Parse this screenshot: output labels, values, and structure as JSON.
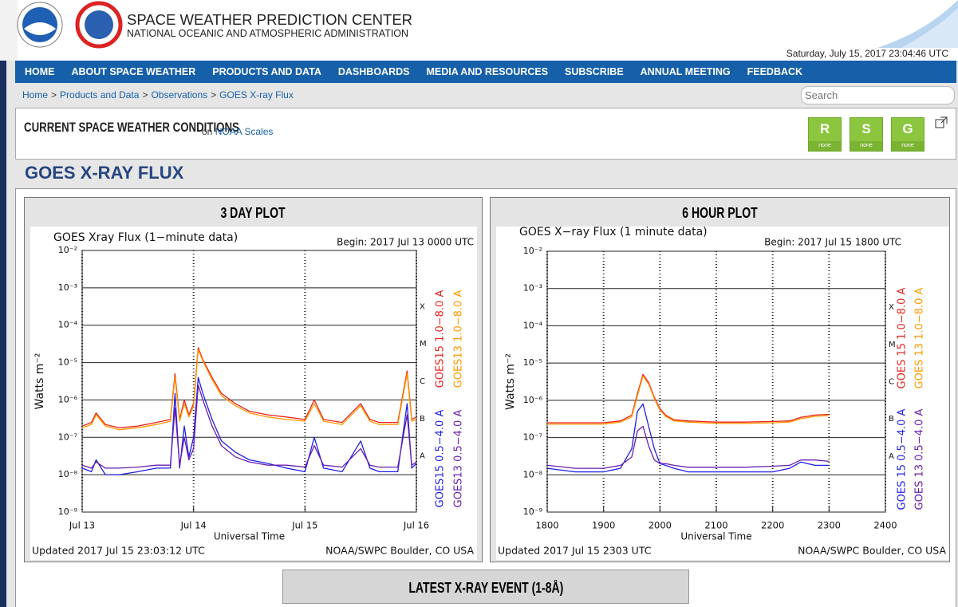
{
  "header": {
    "title": "SPACE WEATHER PREDICTION CENTER",
    "subtitle": "NATIONAL OCEANIC AND ATMOSPHERIC ADMINISTRATION",
    "datetime": "Saturday, July 15, 2017 23:04:46 UTC"
  },
  "nav": [
    "HOME",
    "ABOUT SPACE WEATHER",
    "PRODUCTS AND DATA",
    "DASHBOARDS",
    "MEDIA AND RESOURCES",
    "SUBSCRIBE",
    "ANNUAL MEETING",
    "FEEDBACK"
  ],
  "breadcrumb": [
    "Home",
    "Products and Data",
    "Observations",
    "GOES X-ray Flux"
  ],
  "breadcrumb_separator": ">",
  "search_placeholder": "Search",
  "conditions": {
    "title": "CURRENT SPACE WEATHER CONDITIONS",
    "on": "on",
    "link": "NOAA Scales",
    "scales": [
      {
        "letter": "R",
        "status": "none"
      },
      {
        "letter": "S",
        "status": "none"
      },
      {
        "letter": "G",
        "status": "none"
      }
    ]
  },
  "page_title": "GOES X-RAY FLUX",
  "panels": [
    "3 DAY PLOT",
    "6 HOUR PLOT"
  ],
  "event_heading": "LATEST X-RAY EVENT (1-8Å)",
  "chart_data": [
    {
      "type": "line",
      "title": "GOES Xray Flux (1−minute data)",
      "begin": "Begin:  2017 Jul 13 0000 UTC",
      "ylabel": "Watts m⁻²",
      "xlabel": "Universal Time",
      "updated": "Updated 2017 Jul 15 23:03:12 UTC",
      "credit": "NOAA/SWPC Boulder, CO USA",
      "ylog": true,
      "grid": true,
      "ylim": [
        1e-09,
        0.01
      ],
      "yticks": [
        {
          "value": 1e-09,
          "label": "10⁻⁹"
        },
        {
          "value": 1e-08,
          "label": "10⁻⁸"
        },
        {
          "value": 1e-07,
          "label": "10⁻⁷"
        },
        {
          "value": 1e-06,
          "label": "10⁻⁶"
        },
        {
          "value": 1e-05,
          "label": "10⁻⁵"
        },
        {
          "value": 0.0001,
          "label": "10⁻⁴"
        },
        {
          "value": 0.001,
          "label": "10⁻³"
        },
        {
          "value": 0.01,
          "label": "10⁻²"
        }
      ],
      "flare_classes": [
        {
          "value": 1e-08,
          "label": "A"
        },
        {
          "value": 1e-07,
          "label": "B"
        },
        {
          "value": 1e-06,
          "label": "C"
        },
        {
          "value": 1e-05,
          "label": "M"
        },
        {
          "value": 0.0001,
          "label": "X"
        }
      ],
      "xlim": [
        0,
        72
      ],
      "xticks": [
        {
          "value": 0,
          "label": "Jul 13"
        },
        {
          "value": 24,
          "label": "Jul 14"
        },
        {
          "value": 48,
          "label": "Jul 15"
        },
        {
          "value": 72,
          "label": "Jul 16"
        }
      ],
      "x": [
        0,
        2,
        3,
        5,
        8,
        12,
        16,
        19,
        20,
        21,
        22,
        23,
        24,
        25,
        26,
        28,
        30,
        33,
        36,
        40,
        44,
        48,
        50,
        52,
        56,
        60,
        62,
        64,
        68,
        70,
        71,
        72
      ],
      "series": [
        {
          "name": "GOES15 1.0−8.0 A",
          "color": "#e8231c",
          "values": [
            2e-07,
            2.5e-07,
            4.5e-07,
            2.2e-07,
            1.8e-07,
            2e-07,
            2.5e-07,
            3e-07,
            5e-06,
            3e-07,
            1e-06,
            4e-07,
            8e-07,
            2.5e-05,
            1.2e-05,
            4e-06,
            1.5e-06,
            8e-07,
            5e-07,
            4e-07,
            3.5e-07,
            3e-07,
            1e-06,
            3e-07,
            2.5e-07,
            8e-07,
            3e-07,
            2.5e-07,
            2.5e-07,
            6e-06,
            3e-07,
            3.5e-07
          ]
        },
        {
          "name": "GOES13 1.0−8.0 A",
          "color": "#ff9900",
          "values": [
            1.8e-07,
            2.2e-07,
            4e-07,
            2e-07,
            1.6e-07,
            1.8e-07,
            2.2e-07,
            2.7e-07,
            4e-06,
            2.7e-07,
            8e-07,
            3.5e-07,
            7e-07,
            2.2e-05,
            1.1e-05,
            3.5e-06,
            1.3e-06,
            7e-07,
            4.5e-07,
            3.5e-07,
            3e-07,
            2.7e-07,
            8e-07,
            2.7e-07,
            2.2e-07,
            7e-07,
            2.7e-07,
            2.2e-07,
            2.2e-07,
            5e-06,
            2.7e-07,
            3e-07
          ]
        },
        {
          "name": "GOES15 0.5−4.0 A",
          "color": "#1f1fe6",
          "values": [
            1.5e-08,
            1.2e-08,
            2.5e-08,
            1e-08,
            1e-08,
            1.2e-08,
            1.5e-08,
            1.5e-08,
            1.5e-06,
            1.5e-08,
            2e-07,
            3e-08,
            1e-07,
            4e-06,
            1.5e-06,
            3e-07,
            8e-08,
            4e-08,
            2.5e-08,
            2e-08,
            1.5e-08,
            1.2e-08,
            1e-07,
            1.5e-08,
            1.2e-08,
            8e-08,
            1.5e-08,
            1.2e-08,
            1.2e-08,
            8e-07,
            1.5e-08,
            2e-08
          ]
        },
        {
          "name": "GOES13 0.5−4.0 A",
          "color": "#6a1fb0",
          "values": [
            1.8e-08,
            1.5e-08,
            2.2e-08,
            1.5e-08,
            1.5e-08,
            1.6e-08,
            1.8e-08,
            1.8e-08,
            6e-07,
            1.8e-08,
            1e-07,
            2.5e-08,
            5e-08,
            2.5e-06,
            1e-06,
            2e-07,
            6e-08,
            3e-08,
            2.2e-08,
            1.8e-08,
            1.8e-08,
            1.6e-08,
            6e-08,
            1.8e-08,
            1.6e-08,
            5e-08,
            1.8e-08,
            1.6e-08,
            1.6e-08,
            4e-07,
            1.8e-08,
            2.2e-08
          ]
        }
      ]
    },
    {
      "type": "line",
      "title": "GOES X−ray Flux (1 minute data)",
      "begin": "Begin:  2017 Jul 15 1800 UTC",
      "ylabel": "Watts m⁻²",
      "xlabel": "Universal Time",
      "updated": "Updated 2017 Jul 15 2303 UTC",
      "credit": "NOAA/SWPC Boulder, CO USA",
      "ylog": true,
      "grid": true,
      "ylim": [
        1e-09,
        0.01
      ],
      "yticks": [
        {
          "value": 1e-09,
          "label": "10⁻⁹"
        },
        {
          "value": 1e-08,
          "label": "10⁻⁸"
        },
        {
          "value": 1e-07,
          "label": "10⁻⁷"
        },
        {
          "value": 1e-06,
          "label": "10⁻⁶"
        },
        {
          "value": 1e-05,
          "label": "10⁻⁵"
        },
        {
          "value": 0.0001,
          "label": "10⁻⁴"
        },
        {
          "value": 0.001,
          "label": "10⁻³"
        },
        {
          "value": 0.01,
          "label": "10⁻²"
        }
      ],
      "flare_classes": [
        {
          "value": 1e-08,
          "label": "A"
        },
        {
          "value": 1e-07,
          "label": "B"
        },
        {
          "value": 1e-06,
          "label": "C"
        },
        {
          "value": 1e-05,
          "label": "M"
        },
        {
          "value": 0.0001,
          "label": "X"
        }
      ],
      "xlim": [
        18,
        24
      ],
      "xticks": [
        {
          "value": 18,
          "label": "1800"
        },
        {
          "value": 19,
          "label": "1900"
        },
        {
          "value": 20,
          "label": "2000"
        },
        {
          "value": 21,
          "label": "2100"
        },
        {
          "value": 22,
          "label": "2200"
        },
        {
          "value": 23,
          "label": "2300"
        },
        {
          "value": 24,
          "label": "2400"
        }
      ],
      "x": [
        18,
        18.5,
        19,
        19.3,
        19.5,
        19.6,
        19.7,
        19.8,
        19.9,
        20,
        20.1,
        20.25,
        20.5,
        21,
        21.5,
        22,
        22.3,
        22.5,
        22.75,
        23
      ],
      "series": [
        {
          "name": "GOES 15 1.0−8.0 A",
          "color": "#e8231c",
          "values": [
            2.5e-07,
            2.5e-07,
            2.5e-07,
            2.8e-07,
            4e-07,
            1.5e-06,
            5e-06,
            3e-06,
            1.2e-06,
            6e-07,
            4e-07,
            3e-07,
            2.8e-07,
            2.6e-07,
            2.6e-07,
            2.7e-07,
            2.8e-07,
            3.5e-07,
            4e-07,
            4.2e-07
          ]
        },
        {
          "name": "GOES 13 1.0−8.0 A",
          "color": "#ff9900",
          "values": [
            2.3e-07,
            2.3e-07,
            2.3e-07,
            2.6e-07,
            3.6e-07,
            1.3e-06,
            4.5e-06,
            2.7e-06,
            1.1e-06,
            5.5e-07,
            3.7e-07,
            2.8e-07,
            2.6e-07,
            2.4e-07,
            2.4e-07,
            2.5e-07,
            2.6e-07,
            3.2e-07,
            3.7e-07,
            3.9e-07
          ]
        },
        {
          "name": "GOES 15 0.5−4.0 A",
          "color": "#1f1fe6",
          "values": [
            1.5e-08,
            1.2e-08,
            1.2e-08,
            1.5e-08,
            5e-08,
            5e-07,
            8e-07,
            2e-07,
            5e-08,
            2e-08,
            1.8e-08,
            1.5e-08,
            1.2e-08,
            1.2e-08,
            1.2e-08,
            1.2e-08,
            1.5e-08,
            2.2e-08,
            1.8e-08,
            1.8e-08
          ]
        },
        {
          "name": "GOES 13 0.5−4.0 A",
          "color": "#6a1fb0",
          "values": [
            1.8e-08,
            1.5e-08,
            1.5e-08,
            1.8e-08,
            3e-08,
            1.5e-07,
            2e-07,
            6e-08,
            2.5e-08,
            2e-08,
            2e-08,
            1.8e-08,
            1.6e-08,
            1.6e-08,
            1.6e-08,
            1.7e-08,
            1.8e-08,
            2.5e-08,
            2.5e-08,
            2.3e-08
          ]
        }
      ]
    }
  ]
}
